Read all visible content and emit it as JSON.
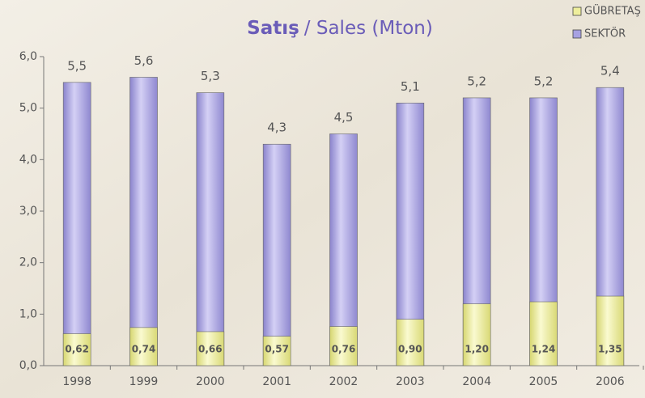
{
  "chart_data": {
    "type": "bar",
    "title": "Satış",
    "subtitle": "/ Sales (Mton)",
    "categories": [
      "1998",
      "1999",
      "2000",
      "2001",
      "2002",
      "2003",
      "2004",
      "2005",
      "2006"
    ],
    "series": [
      {
        "name": "SEKTÖR",
        "color": "#a7a1e2",
        "values": [
          5.5,
          5.6,
          5.3,
          4.3,
          4.5,
          5.1,
          5.2,
          5.2,
          5.4
        ],
        "value_labels": [
          "5,5",
          "5,6",
          "5,3",
          "4,3",
          "4,5",
          "5,1",
          "5,2",
          "5,2",
          "5,4"
        ]
      },
      {
        "name": "GÜBRETAŞ",
        "color": "#eeee9c",
        "values": [
          0.62,
          0.74,
          0.66,
          0.57,
          0.76,
          0.9,
          1.2,
          1.24,
          1.35
        ],
        "value_labels": [
          "0,62",
          "0,74",
          "0,66",
          "0,57",
          "0,76",
          "0,90",
          "1,20",
          "1,24",
          "1,35"
        ]
      }
    ],
    "ylim": [
      0,
      6
    ],
    "yticks": [
      {
        "value": 0,
        "label": "0,0"
      },
      {
        "value": 1,
        "label": "1,0"
      },
      {
        "value": 2,
        "label": "2,0"
      },
      {
        "value": 3,
        "label": "3,0"
      },
      {
        "value": 4,
        "label": "4,0"
      },
      {
        "value": 5,
        "label": "5,0"
      },
      {
        "value": 6,
        "label": "6,0"
      }
    ],
    "grid": false,
    "legend": "top-right",
    "overlap": true
  }
}
